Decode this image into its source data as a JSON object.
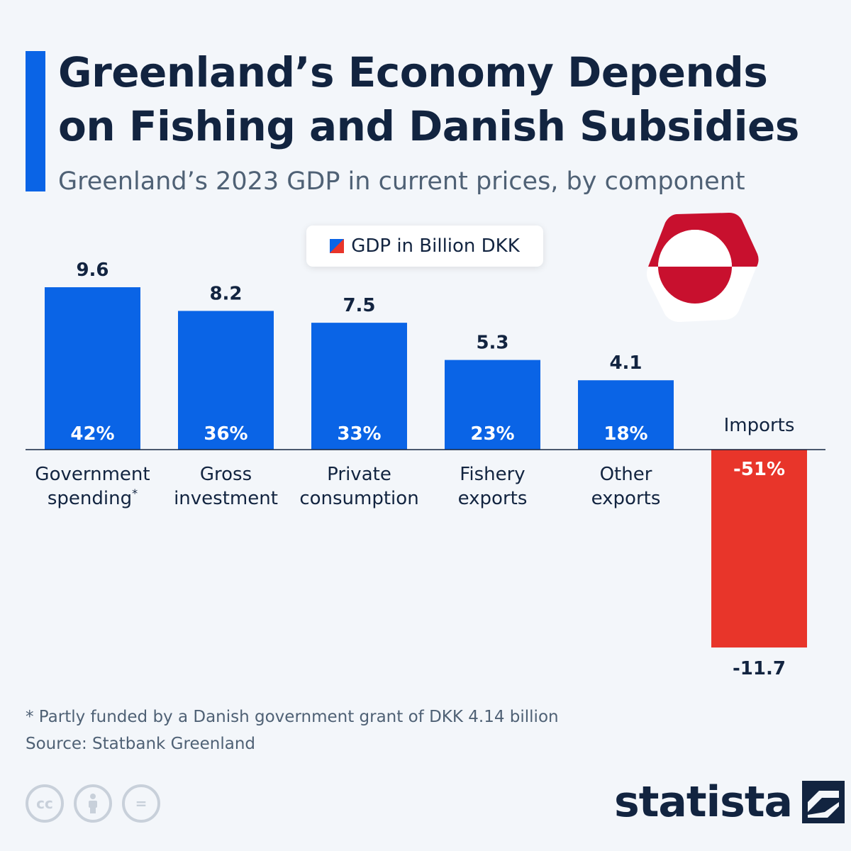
{
  "title": "Greenland’s Economy Depends on Fishing and Danish Subsidies",
  "subtitle": "Greenland’s 2023 GDP in current prices, by component",
  "legend": {
    "label": "GDP in Billion DKK"
  },
  "flag": {
    "country": "Greenland",
    "icon": "greenland-flag-icon"
  },
  "colors": {
    "positive": "#0a64e6",
    "negative": "#e8352a",
    "text": "#122440",
    "muted": "#4f6175"
  },
  "chart_data": {
    "type": "bar",
    "title": "Greenland’s 2023 GDP in current prices, by component",
    "ylabel": "GDP in Billion DKK",
    "ylim": [
      -11.7,
      9.6
    ],
    "bars": [
      {
        "category_lines": [
          "Government",
          "spending"
        ],
        "marker": "*",
        "value": 9.6,
        "value_label": "9.6",
        "share_label": "42%"
      },
      {
        "category_lines": [
          "Gross",
          "investment"
        ],
        "value": 8.2,
        "value_label": "8.2",
        "share_label": "36%"
      },
      {
        "category_lines": [
          "Private",
          "consumption"
        ],
        "value": 7.5,
        "value_label": "7.5",
        "share_label": "33%"
      },
      {
        "category_lines": [
          "Fishery",
          "exports"
        ],
        "value": 5.3,
        "value_label": "5.3",
        "share_label": "23%"
      },
      {
        "category_lines": [
          "Other",
          "exports"
        ],
        "value": 4.1,
        "value_label": "4.1",
        "share_label": "18%"
      },
      {
        "category_lines": [
          "Imports"
        ],
        "value": -11.7,
        "value_label": "-11.7",
        "share_label": "-51%"
      }
    ]
  },
  "footnote": "* Partly funded by a Danish government grant of DKK 4.14 billion",
  "source": "Source: Statbank Greenland",
  "license_icons": [
    {
      "name": "cc-icon",
      "glyph": "cc"
    },
    {
      "name": "attribution-icon",
      "glyph": ""
    },
    {
      "name": "no-derivatives-icon",
      "glyph": "="
    }
  ],
  "brand": {
    "name": "statista",
    "logo": "statista-logo-icon"
  }
}
